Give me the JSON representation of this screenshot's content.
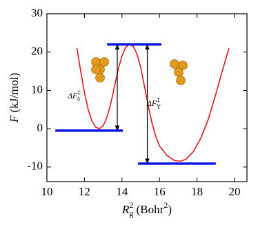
{
  "chart_data": {
    "type": "line",
    "xlabel": [
      {
        "text": "R",
        "style": "italic"
      },
      {
        "text": "g",
        "style": "sub"
      },
      {
        "text": "2",
        "style": "sup"
      },
      {
        "text": " (Bohr",
        "style": "normal"
      },
      {
        "text": "2",
        "style": "sup"
      },
      {
        "text": ")",
        "style": "normal"
      }
    ],
    "ylabel": [
      {
        "text": "F",
        "style": "italic"
      },
      {
        "text": " (kJ/mol)",
        "style": "normal"
      }
    ],
    "xlim": [
      10,
      20.66
    ],
    "ylim": [
      -13.8,
      30
    ],
    "xticks": [
      10,
      12,
      14,
      16,
      18,
      20
    ],
    "yticks": [
      -10,
      0,
      10,
      20,
      30
    ],
    "series": [
      {
        "color": "#e8141a",
        "x": [
          11.6,
          11.8,
          12.0,
          12.2,
          12.4,
          12.6,
          12.8,
          13.0,
          13.2,
          13.4,
          13.6,
          13.8,
          14.0,
          14.2,
          14.4,
          14.6,
          14.8,
          15.0,
          15.2,
          15.4,
          15.6,
          15.8,
          16.0,
          16.4,
          16.8,
          17.1,
          17.4,
          17.8,
          18.2,
          18.6,
          19.0,
          19.4,
          19.7
        ],
        "values": [
          21,
          15,
          9.5,
          5,
          2,
          0.4,
          0,
          0.8,
          3,
          6.5,
          11,
          15.5,
          19,
          21.3,
          22,
          21.5,
          19.5,
          16,
          11,
          6,
          1.5,
          -2,
          -4.5,
          -7,
          -8.3,
          -8.5,
          -8,
          -6,
          -2.5,
          2.5,
          9,
          16,
          21
        ]
      }
    ],
    "levels": [
      {
        "value": -0.5,
        "x": [
          10.45,
          14.05
        ]
      },
      {
        "value": 22,
        "x": [
          13.2,
          16.1
        ]
      },
      {
        "value": -9.1,
        "x": [
          14.85,
          19.0
        ]
      }
    ],
    "level_color": "#0a14e6",
    "arrows": [
      {
        "x": 13.75,
        "from": -0.5,
        "to": 22
      },
      {
        "x": 15.35,
        "from": 22,
        "to": -9.1
      }
    ],
    "annotations": [
      {
        "text": "ΔF",
        "sup": "‡",
        "sub": "◊",
        "x": 11.45,
        "y": 8.5
      },
      {
        "text": "ΔF",
        "sup": "‡",
        "sub": "Y",
        "x": 15.7,
        "y": 6.5
      }
    ]
  }
}
